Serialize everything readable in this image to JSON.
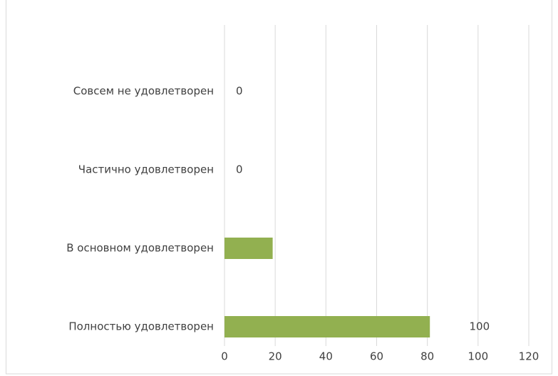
{
  "chart_data": {
    "type": "bar",
    "orientation": "horizontal",
    "categories": [
      "Совсем не удовлетворен",
      "Частично удовлетворен",
      "В основном удовлетворен",
      "Полностью удовлетворен"
    ],
    "values": [
      0,
      0,
      19,
      81
    ],
    "value_labels": [
      "0",
      "0",
      null,
      null
    ],
    "color": "#92b050",
    "xlim": [
      0,
      120
    ],
    "xticks": [
      0,
      20,
      40,
      60,
      80,
      100,
      120
    ],
    "grid": true,
    "annotations": [
      {
        "text": "100",
        "x": 100,
        "category": 3
      }
    ]
  }
}
